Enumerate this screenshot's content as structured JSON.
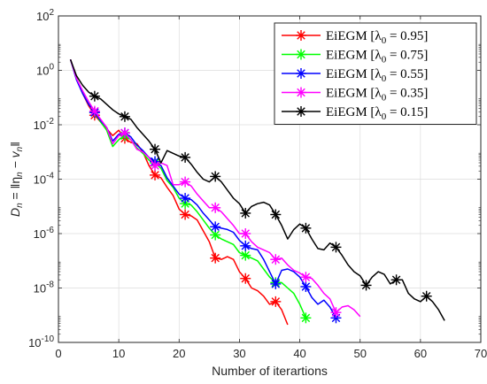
{
  "chart_data": {
    "type": "line",
    "xlabel": "Number of iterartions",
    "ylabel": "D_n = ‖η_n − v_n‖",
    "ylabel_parts": {
      "main": "D",
      "sub": "n",
      "rest": " = ‖η",
      "sub2": "n",
      "minus": " − v",
      "sub3": "n",
      "close": "‖"
    },
    "xlim": [
      0,
      70
    ],
    "ylim_log10": [
      -10,
      2
    ],
    "yscale": "log",
    "grid": true,
    "legend_position": "top-right",
    "x_ticks": [
      "0",
      "10",
      "20",
      "30",
      "40",
      "50",
      "60",
      "70"
    ],
    "y_ticks": [
      {
        "base": "10",
        "exp": "2"
      },
      {
        "base": "10",
        "exp": "0"
      },
      {
        "base": "10",
        "exp": "-2"
      },
      {
        "base": "10",
        "exp": "-4"
      },
      {
        "base": "10",
        "exp": "-6"
      },
      {
        "base": "10",
        "exp": "-8"
      },
      {
        "base": "10",
        "exp": "-10"
      }
    ],
    "series": [
      {
        "name": "EiEGM [λ0 = 0.95]",
        "legend": {
          "label": "EiEGM [λ",
          "sub": "0",
          "value": " = 0.95]"
        },
        "color": "#ff0000",
        "x": [
          2,
          3,
          4,
          5,
          6,
          7,
          8,
          9,
          10,
          11,
          12,
          13,
          14,
          15,
          16,
          17,
          18,
          19,
          20,
          21,
          22,
          23,
          24,
          25,
          26,
          27,
          28,
          29,
          30,
          31,
          32,
          33,
          34,
          35,
          36,
          37,
          38
        ],
        "log10_y": [
          0.4,
          -0.3,
          -0.85,
          -1.3,
          -1.65,
          -1.9,
          -2.15,
          -2.4,
          -2.2,
          -2.5,
          -2.65,
          -2.7,
          -3.0,
          -3.5,
          -3.85,
          -3.95,
          -4.3,
          -4.6,
          -5.1,
          -5.3,
          -5.35,
          -5.5,
          -5.9,
          -6.3,
          -6.9,
          -6.95,
          -6.85,
          -6.95,
          -7.4,
          -7.65,
          -8.0,
          -8.1,
          -8.3,
          -8.6,
          -8.5,
          -8.8,
          -9.35
        ],
        "markers_x": [
          6,
          11,
          16,
          21,
          26,
          31,
          36
        ]
      },
      {
        "name": "EiEGM [λ0 = 0.75]",
        "legend": {
          "label": "EiEGM [λ",
          "sub": "0",
          "value": " = 0.75]"
        },
        "color": "#00ff00",
        "x": [
          2,
          3,
          4,
          5,
          6,
          7,
          8,
          9,
          10,
          11,
          12,
          13,
          14,
          15,
          16,
          17,
          18,
          19,
          20,
          21,
          22,
          23,
          24,
          25,
          26,
          27,
          28,
          29,
          30,
          31,
          32,
          33,
          34,
          35,
          36,
          37,
          38,
          39,
          40,
          41
        ],
        "log10_y": [
          0.4,
          -0.3,
          -0.8,
          -1.2,
          -1.55,
          -1.9,
          -2.2,
          -2.8,
          -2.55,
          -2.4,
          -2.55,
          -2.85,
          -3.05,
          -3.3,
          -3.4,
          -3.6,
          -4.05,
          -4.3,
          -4.7,
          -4.9,
          -4.95,
          -5.2,
          -5.5,
          -5.8,
          -6.05,
          -6.2,
          -6.3,
          -6.4,
          -6.7,
          -6.8,
          -6.9,
          -7.0,
          -7.3,
          -7.6,
          -7.8,
          -7.8,
          -8.0,
          -8.2,
          -8.6,
          -9.1
        ],
        "markers_x": [
          6,
          11,
          16,
          21,
          26,
          31,
          36,
          41
        ]
      },
      {
        "name": "EiEGM [λ0 = 0.55]",
        "legend": {
          "label": "EiEGM [λ",
          "sub": "0",
          "value": " = 0.55]"
        },
        "color": "#0000ff",
        "x": [
          2,
          3,
          4,
          5,
          6,
          7,
          8,
          9,
          10,
          11,
          12,
          13,
          14,
          15,
          16,
          17,
          18,
          19,
          20,
          21,
          22,
          23,
          24,
          25,
          26,
          27,
          28,
          29,
          30,
          31,
          32,
          33,
          34,
          35,
          36,
          37,
          38,
          39,
          40,
          41,
          42,
          43,
          44,
          45,
          46
        ],
        "log10_y": [
          0.4,
          -0.35,
          -0.85,
          -1.25,
          -1.55,
          -1.85,
          -2.1,
          -2.6,
          -2.35,
          -2.3,
          -2.45,
          -2.75,
          -2.95,
          -3.2,
          -3.35,
          -3.5,
          -3.95,
          -4.25,
          -4.55,
          -4.7,
          -4.75,
          -4.95,
          -5.25,
          -5.5,
          -5.75,
          -5.8,
          -5.85,
          -5.95,
          -6.25,
          -6.45,
          -6.55,
          -6.6,
          -6.95,
          -7.4,
          -7.85,
          -7.35,
          -7.3,
          -7.4,
          -7.6,
          -7.95,
          -8.35,
          -8.6,
          -8.45,
          -8.7,
          -9.1
        ],
        "markers_x": [
          6,
          11,
          16,
          21,
          26,
          31,
          36,
          41,
          46
        ]
      },
      {
        "name": "EiEGM [λ0 = 0.35]",
        "legend": {
          "label": "EiEGM [λ",
          "sub": "0",
          "value": " = 0.35]"
        },
        "color": "#ff00ff",
        "x": [
          2,
          3,
          4,
          5,
          6,
          7,
          8,
          9,
          10,
          11,
          12,
          13,
          14,
          15,
          16,
          17,
          18,
          19,
          20,
          21,
          22,
          23,
          24,
          25,
          26,
          27,
          28,
          29,
          30,
          31,
          32,
          33,
          34,
          35,
          36,
          37,
          38,
          39,
          40,
          41,
          42,
          43,
          44,
          45,
          46,
          47,
          48,
          49,
          50
        ],
        "log10_y": [
          0.4,
          -0.3,
          -0.75,
          -1.15,
          -1.5,
          -1.8,
          -2.1,
          -2.7,
          -2.4,
          -2.3,
          -2.55,
          -2.9,
          -3.0,
          -3.2,
          -3.5,
          -3.4,
          -3.5,
          -4.2,
          -4.2,
          -4.1,
          -4.25,
          -4.55,
          -4.8,
          -5.05,
          -5.05,
          -5.2,
          -5.45,
          -5.7,
          -6.0,
          -6.0,
          -6.3,
          -6.5,
          -6.6,
          -6.7,
          -6.95,
          -6.9,
          -7.15,
          -7.35,
          -7.45,
          -7.6,
          -7.65,
          -7.9,
          -8.2,
          -8.4,
          -8.9,
          -8.7,
          -8.65,
          -8.8,
          -9.05
        ],
        "markers_x": [
          6,
          11,
          16,
          21,
          26,
          31,
          36,
          41,
          46
        ]
      },
      {
        "name": "EiEGM [λ0 = 0.15]",
        "legend": {
          "label": "EiEGM [λ",
          "sub": "0",
          "value": " = 0.15]"
        },
        "color": "#000000",
        "x": [
          2,
          3,
          4,
          5,
          6,
          7,
          8,
          9,
          10,
          11,
          12,
          13,
          14,
          15,
          16,
          17,
          18,
          19,
          20,
          21,
          22,
          23,
          24,
          25,
          26,
          27,
          28,
          29,
          30,
          31,
          32,
          33,
          34,
          35,
          36,
          37,
          38,
          39,
          40,
          41,
          42,
          43,
          44,
          45,
          46,
          47,
          48,
          49,
          50,
          51,
          52,
          53,
          54,
          55,
          56,
          57,
          58,
          59,
          60,
          61,
          62,
          63,
          64
        ],
        "log10_y": [
          0.4,
          -0.2,
          -0.55,
          -0.8,
          -0.95,
          -1.05,
          -1.25,
          -1.45,
          -1.6,
          -1.7,
          -1.8,
          -2.1,
          -2.35,
          -2.6,
          -2.9,
          -3.4,
          -2.95,
          -3.05,
          -3.15,
          -3.2,
          -3.45,
          -3.75,
          -4.0,
          -4.1,
          -3.9,
          -4.1,
          -4.4,
          -4.7,
          -4.9,
          -5.25,
          -5.0,
          -4.9,
          -4.85,
          -4.95,
          -5.3,
          -5.7,
          -6.2,
          -5.85,
          -5.65,
          -5.8,
          -6.2,
          -6.55,
          -6.6,
          -6.35,
          -6.5,
          -6.8,
          -7.15,
          -7.4,
          -7.55,
          -7.9,
          -7.6,
          -7.4,
          -7.5,
          -7.85,
          -7.7,
          -7.7,
          -8.2,
          -8.4,
          -8.5,
          -8.3,
          -8.5,
          -8.8,
          -9.2
        ],
        "markers_x": [
          6,
          11,
          16,
          21,
          26,
          31,
          36,
          41,
          46,
          51,
          56,
          61
        ]
      }
    ]
  }
}
